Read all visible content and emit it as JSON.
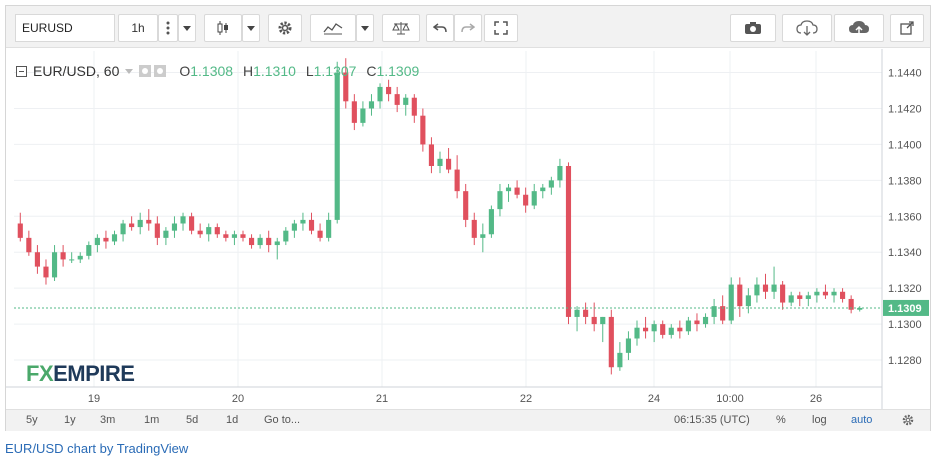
{
  "toolbar": {
    "symbol": "EURUSD",
    "interval": "1h"
  },
  "legend": {
    "title": "EUR/USD, 60",
    "open_label": "O",
    "open": "1.1308",
    "high_label": "H",
    "high": "1.1310",
    "low_label": "L",
    "low": "1.1307",
    "close_label": "C",
    "close": "1.1309"
  },
  "price_label": "1.1309",
  "watermark": {
    "fx": "FX",
    "empire": "EMPIRE"
  },
  "bottombar": {
    "ranges": [
      "5y",
      "1y",
      "3m",
      "1m",
      "5d",
      "1d"
    ],
    "goto": "Go to...",
    "time": "06:15:35 (UTC)",
    "percent": "%",
    "log": "log",
    "auto": "auto"
  },
  "credit": "EUR/USD chart by TradingView",
  "colors": {
    "up": "#53b987",
    "down": "#e0505e",
    "price_line": "#53b987",
    "accent": "#2a6bb6"
  },
  "chart_data": {
    "type": "candlestick",
    "yticks": [
      "1.1280",
      "1.1300",
      "1.1320",
      "1.1340",
      "1.1360",
      "1.1380",
      "1.1400",
      "1.1420",
      "1.1440"
    ],
    "ylim": [
      1.1265,
      1.1452
    ],
    "xticks": [
      "19",
      "20",
      "21",
      "22",
      "24",
      "10:00",
      "26"
    ],
    "current_price": 1.1309,
    "candles": [
      [
        1.1356,
        1.1362,
        1.1346,
        1.1348
      ],
      [
        1.1348,
        1.1352,
        1.1338,
        1.134
      ],
      [
        1.134,
        1.1344,
        1.1328,
        1.1332
      ],
      [
        1.1332,
        1.1336,
        1.1322,
        1.1326
      ],
      [
        1.1326,
        1.1344,
        1.1324,
        1.134
      ],
      [
        1.134,
        1.1344,
        1.1332,
        1.1336
      ],
      [
        1.1336,
        1.134,
        1.1334,
        1.1336
      ],
      [
        1.1336,
        1.134,
        1.1334,
        1.1338
      ],
      [
        1.1338,
        1.1346,
        1.1336,
        1.1344
      ],
      [
        1.1344,
        1.135,
        1.134,
        1.1348
      ],
      [
        1.1348,
        1.1352,
        1.1342,
        1.1346
      ],
      [
        1.1346,
        1.1352,
        1.1344,
        1.135
      ],
      [
        1.135,
        1.1358,
        1.1346,
        1.1356
      ],
      [
        1.1356,
        1.136,
        1.1352,
        1.1354
      ],
      [
        1.1354,
        1.1362,
        1.135,
        1.1358
      ],
      [
        1.1358,
        1.1364,
        1.1352,
        1.1356
      ],
      [
        1.1356,
        1.136,
        1.1344,
        1.1348
      ],
      [
        1.1348,
        1.1354,
        1.1344,
        1.1352
      ],
      [
        1.1352,
        1.136,
        1.1348,
        1.1356
      ],
      [
        1.1356,
        1.1362,
        1.1352,
        1.136
      ],
      [
        1.136,
        1.1362,
        1.135,
        1.1352
      ],
      [
        1.1352,
        1.1356,
        1.1348,
        1.135
      ],
      [
        1.135,
        1.1356,
        1.1346,
        1.1354
      ],
      [
        1.1354,
        1.1356,
        1.1348,
        1.135
      ],
      [
        1.135,
        1.1352,
        1.1346,
        1.1348
      ],
      [
        1.1348,
        1.1352,
        1.1344,
        1.135
      ],
      [
        1.135,
        1.1352,
        1.1346,
        1.1348
      ],
      [
        1.1348,
        1.135,
        1.1342,
        1.1344
      ],
      [
        1.1344,
        1.135,
        1.1342,
        1.1348
      ],
      [
        1.1348,
        1.1352,
        1.134,
        1.1344
      ],
      [
        1.1344,
        1.1348,
        1.1336,
        1.1346
      ],
      [
        1.1346,
        1.1354,
        1.1344,
        1.1352
      ],
      [
        1.1352,
        1.1358,
        1.1348,
        1.1356
      ],
      [
        1.1356,
        1.1362,
        1.1352,
        1.1358
      ],
      [
        1.1358,
        1.1362,
        1.135,
        1.1352
      ],
      [
        1.1352,
        1.1356,
        1.1346,
        1.1348
      ],
      [
        1.1348,
        1.1362,
        1.1346,
        1.1358
      ],
      [
        1.1358,
        1.1446,
        1.1356,
        1.144
      ],
      [
        1.144,
        1.1448,
        1.142,
        1.1424
      ],
      [
        1.1424,
        1.1428,
        1.1408,
        1.1412
      ],
      [
        1.1412,
        1.1424,
        1.141,
        1.142
      ],
      [
        1.142,
        1.1428,
        1.1416,
        1.1424
      ],
      [
        1.1424,
        1.1434,
        1.142,
        1.1432
      ],
      [
        1.1432,
        1.1436,
        1.1424,
        1.1428
      ],
      [
        1.1428,
        1.1432,
        1.1418,
        1.1422
      ],
      [
        1.1422,
        1.1428,
        1.1416,
        1.1426
      ],
      [
        1.1426,
        1.1428,
        1.1412,
        1.1416
      ],
      [
        1.1416,
        1.142,
        1.1396,
        1.14
      ],
      [
        1.14,
        1.1404,
        1.1384,
        1.1388
      ],
      [
        1.1388,
        1.1396,
        1.1384,
        1.1392
      ],
      [
        1.1392,
        1.1398,
        1.1384,
        1.1386
      ],
      [
        1.1386,
        1.1394,
        1.137,
        1.1374
      ],
      [
        1.1374,
        1.1378,
        1.1354,
        1.1358
      ],
      [
        1.1358,
        1.1362,
        1.1344,
        1.1348
      ],
      [
        1.1348,
        1.1356,
        1.134,
        1.135
      ],
      [
        1.135,
        1.1366,
        1.1348,
        1.1364
      ],
      [
        1.1364,
        1.1378,
        1.136,
        1.1374
      ],
      [
        1.1374,
        1.1378,
        1.1368,
        1.1376
      ],
      [
        1.1376,
        1.138,
        1.137,
        1.1372
      ],
      [
        1.1372,
        1.1376,
        1.1362,
        1.1366
      ],
      [
        1.1366,
        1.1378,
        1.1364,
        1.1374
      ],
      [
        1.1374,
        1.1378,
        1.137,
        1.1376
      ],
      [
        1.1376,
        1.1382,
        1.1372,
        1.138
      ],
      [
        1.138,
        1.1392,
        1.1376,
        1.1388
      ],
      [
        1.1388,
        1.139,
        1.13,
        1.1304
      ],
      [
        1.1304,
        1.131,
        1.1296,
        1.1308
      ],
      [
        1.1308,
        1.1312,
        1.13,
        1.1304
      ],
      [
        1.1304,
        1.1312,
        1.1296,
        1.13
      ],
      [
        1.13,
        1.1304,
        1.129,
        1.1304
      ],
      [
        1.1304,
        1.1308,
        1.1272,
        1.1276
      ],
      [
        1.1276,
        1.129,
        1.1274,
        1.1284
      ],
      [
        1.1284,
        1.1296,
        1.128,
        1.1292
      ],
      [
        1.1292,
        1.1302,
        1.1288,
        1.1298
      ],
      [
        1.1298,
        1.1304,
        1.1292,
        1.1296
      ],
      [
        1.1296,
        1.1302,
        1.129,
        1.13
      ],
      [
        1.13,
        1.1302,
        1.1292,
        1.1294
      ],
      [
        1.1294,
        1.13,
        1.1292,
        1.1298
      ],
      [
        1.1298,
        1.1302,
        1.1292,
        1.1296
      ],
      [
        1.1296,
        1.1304,
        1.1294,
        1.1302
      ],
      [
        1.1302,
        1.1306,
        1.1296,
        1.13
      ],
      [
        1.13,
        1.1306,
        1.1298,
        1.1304
      ],
      [
        1.1304,
        1.1314,
        1.13,
        1.131
      ],
      [
        1.131,
        1.1316,
        1.13,
        1.1302
      ],
      [
        1.1302,
        1.1326,
        1.13,
        1.1322
      ],
      [
        1.1322,
        1.1326,
        1.1304,
        1.131
      ],
      [
        1.131,
        1.132,
        1.1306,
        1.1316
      ],
      [
        1.1316,
        1.1326,
        1.1312,
        1.1322
      ],
      [
        1.1322,
        1.1328,
        1.1314,
        1.1318
      ],
      [
        1.1318,
        1.1332,
        1.1314,
        1.1322
      ],
      [
        1.1322,
        1.1324,
        1.1308,
        1.1312
      ],
      [
        1.1312,
        1.1318,
        1.131,
        1.1316
      ],
      [
        1.1316,
        1.1318,
        1.131,
        1.1314
      ],
      [
        1.1314,
        1.1318,
        1.131,
        1.1316
      ],
      [
        1.1316,
        1.132,
        1.1312,
        1.1318
      ],
      [
        1.1318,
        1.1322,
        1.1314,
        1.1316
      ],
      [
        1.1316,
        1.132,
        1.1312,
        1.1318
      ],
      [
        1.1318,
        1.132,
        1.1312,
        1.1314
      ],
      [
        1.1314,
        1.1316,
        1.1306,
        1.1308
      ],
      [
        1.1308,
        1.131,
        1.1307,
        1.1309
      ]
    ]
  }
}
